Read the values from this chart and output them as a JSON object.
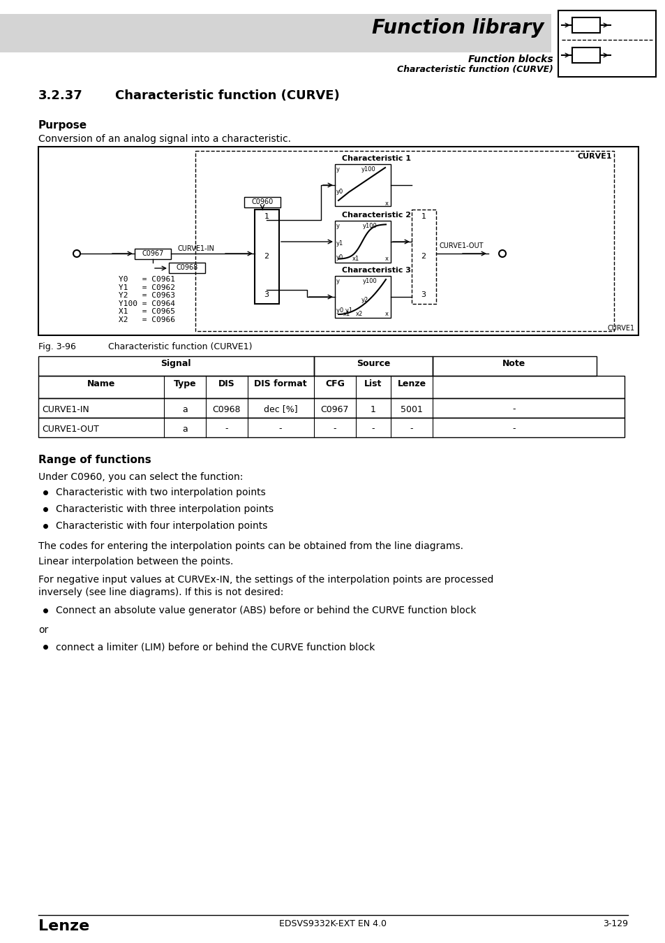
{
  "page_bg": "#ffffff",
  "header_bg": "#d4d4d4",
  "header_title": "Function library",
  "header_sub1": "Function blocks",
  "header_sub2": "Characteristic function (CURVE)",
  "section_number": "3.2.37",
  "section_title": "Characteristic function (CURVE)",
  "purpose_title": "Purpose",
  "purpose_text": "Conversion of an analog signal into a characteristic.",
  "fig_label": "Fig. 3-96",
  "fig_caption": "Characteristic function (CURVE1)",
  "table_rows": [
    [
      "CURVE1-IN",
      "a",
      "C0968",
      "dec [%]",
      "C0967",
      "1",
      "5001",
      "-"
    ],
    [
      "CURVE1-OUT",
      "a",
      "-",
      "-",
      "-",
      "-",
      "-",
      "-"
    ]
  ],
  "range_title": "Range of functions",
  "range_intro": "Under C0960, you can select the function:",
  "range_bullets": [
    "Characteristic with two interpolation points",
    "Characteristic with three interpolation points",
    "Characteristic with four interpolation points"
  ],
  "range_para1": "The codes for entering the interpolation points can be obtained from the line diagrams.",
  "range_para2": "Linear interpolation between the points.",
  "range_para3a": "For negative input values at CURVEx-IN, the settings of the interpolation points are processed",
  "range_para3b": "inversely (see line diagrams). If this is not desired:",
  "range_bullet2": "Connect an absolute value generator (ABS) before or behind the CURVE function block",
  "range_or": "or",
  "range_bullet3": "connect a limiter (LIM) before or behind the CURVE function block",
  "footer_logo": "Lenze",
  "footer_doc": "EDSVS9332K-EXT EN 4.0",
  "footer_page": "3-129",
  "curve1_label": "CURVE1",
  "char1_label": "Characteristic 1",
  "char2_label": "Characteristic 2",
  "char3_label": "Characteristic 3",
  "c0960_label": "C0960",
  "c0967_label": "C0967",
  "c0968_label": "C0968",
  "curve1in_label": "CURVE1-IN",
  "curve1out_label": "CURVE1-OUT",
  "codes_text": "Y0   = C0961\nY1   = C0962\nY2   = C0963\nY100 = C0964\nX1   = C0965\nX2   = C0966"
}
